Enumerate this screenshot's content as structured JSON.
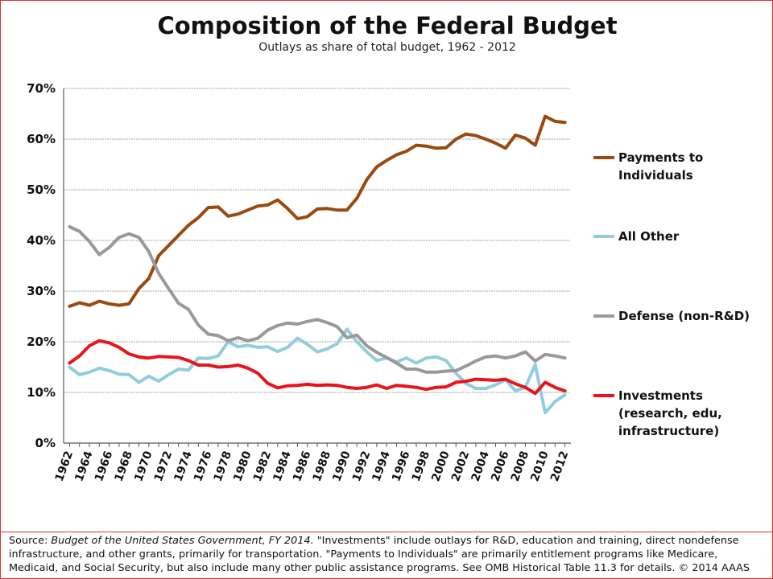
{
  "title": "Composition of the Federal Budget",
  "subtitle": "Outlays as share of total budget, 1962 - 2012",
  "source": {
    "label": "Source: ",
    "citation": "Budget of the United States Government, FY 2014.",
    "body": " \"Investments\" include outlays for R&D, education and training, direct nondefense infrastructure, and other grants, primarily for transportation. \"Payments to Individuals\" are primarily entitlement programs like Medicare, Medicaid, and Social Security, but also include many other public assistance programs. See OMB Historical Table 11.3 for details. © 2014 AAAS"
  },
  "chart_data": {
    "type": "line",
    "title": "Composition of the Federal Budget",
    "subtitle": "Outlays as share of total budget, 1962 - 2012",
    "xlabel": "",
    "ylabel": "",
    "ylim": [
      0,
      70
    ],
    "y_ticks": [
      0,
      10,
      20,
      30,
      40,
      50,
      60,
      70
    ],
    "y_tick_labels": [
      "0%",
      "10%",
      "20%",
      "30%",
      "40%",
      "50%",
      "60%",
      "70%"
    ],
    "x_tick_labels": [
      "1962",
      "1964",
      "1966",
      "1968",
      "1970",
      "1972",
      "1974",
      "1976",
      "1978",
      "1980",
      "1982",
      "1984",
      "1986",
      "1988",
      "1990",
      "1992",
      "1994",
      "1996",
      "1998",
      "2000",
      "2002",
      "2004",
      "2006",
      "2008",
      "2010",
      "2012"
    ],
    "grid": "horizontal",
    "legend_position": "right",
    "x": [
      1962,
      1963,
      1964,
      1965,
      1966,
      1967,
      1968,
      1969,
      1970,
      1971,
      1972,
      1973,
      1974,
      1975,
      1976,
      1977,
      1978,
      1979,
      1980,
      1981,
      1982,
      1983,
      1984,
      1985,
      1986,
      1987,
      1988,
      1989,
      1990,
      1991,
      1992,
      1993,
      1994,
      1995,
      1996,
      1997,
      1998,
      1999,
      2000,
      2001,
      2002,
      2003,
      2004,
      2005,
      2006,
      2007,
      2008,
      2009,
      2010,
      2011,
      2012
    ],
    "series": [
      {
        "name": "Payments to Individuals",
        "legend_lines": [
          "Payments to",
          "Individuals"
        ],
        "color": "#9a4a0f",
        "values": [
          27.0,
          27.7,
          27.2,
          28.0,
          27.5,
          27.2,
          27.5,
          30.5,
          32.5,
          37.0,
          39.0,
          41.0,
          43.0,
          44.5,
          46.5,
          46.6,
          44.8,
          45.2,
          46.0,
          46.8,
          47.0,
          48.0,
          46.3,
          44.3,
          44.7,
          46.2,
          46.3,
          46.0,
          46.0,
          48.3,
          52.0,
          54.5,
          55.8,
          56.9,
          57.6,
          58.8,
          58.6,
          58.2,
          58.3,
          60.0,
          61.0,
          60.7,
          60.0,
          59.2,
          58.2,
          60.8,
          60.2,
          58.8,
          64.5,
          63.5,
          63.3
        ]
      },
      {
        "name": "All Other",
        "legend_lines": [
          "All Other"
        ],
        "color": "#92cddc",
        "values": [
          15.0,
          13.5,
          14.0,
          14.8,
          14.3,
          13.6,
          13.5,
          12.0,
          13.2,
          12.2,
          13.5,
          14.6,
          14.4,
          16.8,
          16.7,
          17.2,
          20.0,
          19.0,
          19.3,
          18.9,
          19.0,
          18.1,
          18.9,
          20.7,
          19.5,
          18.0,
          18.6,
          19.6,
          22.5,
          20.0,
          18.0,
          16.3,
          16.8,
          16.0,
          16.8,
          15.8,
          16.8,
          17.0,
          16.3,
          13.8,
          11.8,
          10.8,
          10.8,
          11.5,
          12.5,
          10.3,
          11.0,
          15.5,
          6.0,
          8.2,
          9.5
        ]
      },
      {
        "name": "Defense (non-R&D)",
        "legend_lines": [
          "Defense (non-R&D)"
        ],
        "color": "#999999",
        "values": [
          42.7,
          41.8,
          39.8,
          37.2,
          38.6,
          40.6,
          41.3,
          40.6,
          37.8,
          33.5,
          30.5,
          27.6,
          26.4,
          23.3,
          21.5,
          21.2,
          20.2,
          20.8,
          20.2,
          20.7,
          22.3,
          23.2,
          23.7,
          23.5,
          24.0,
          24.4,
          23.8,
          23.0,
          20.8,
          21.3,
          19.2,
          17.9,
          16.9,
          15.8,
          14.6,
          14.6,
          14.0,
          14.0,
          14.2,
          14.3,
          15.2,
          16.2,
          17.0,
          17.2,
          16.8,
          17.2,
          18.0,
          16.2,
          17.5,
          17.2,
          16.8
        ]
      },
      {
        "name": "Investments (research, edu, infrastructure)",
        "legend_lines": [
          "Investments",
          "(research, edu,",
          "infrastructure)"
        ],
        "color": "#e8141c",
        "values": [
          15.8,
          17.2,
          19.2,
          20.2,
          19.8,
          18.9,
          17.6,
          17.0,
          16.8,
          17.1,
          17.0,
          16.9,
          16.3,
          15.4,
          15.4,
          15.0,
          15.1,
          15.4,
          14.8,
          13.8,
          11.8,
          10.9,
          11.3,
          11.4,
          11.6,
          11.4,
          11.5,
          11.4,
          11.0,
          10.8,
          11.0,
          11.5,
          10.8,
          11.4,
          11.2,
          11.0,
          10.6,
          11.0,
          11.1,
          12.0,
          12.2,
          12.6,
          12.5,
          12.4,
          12.6,
          11.7,
          11.0,
          9.8,
          12.0,
          11.0,
          10.3
        ]
      }
    ]
  }
}
